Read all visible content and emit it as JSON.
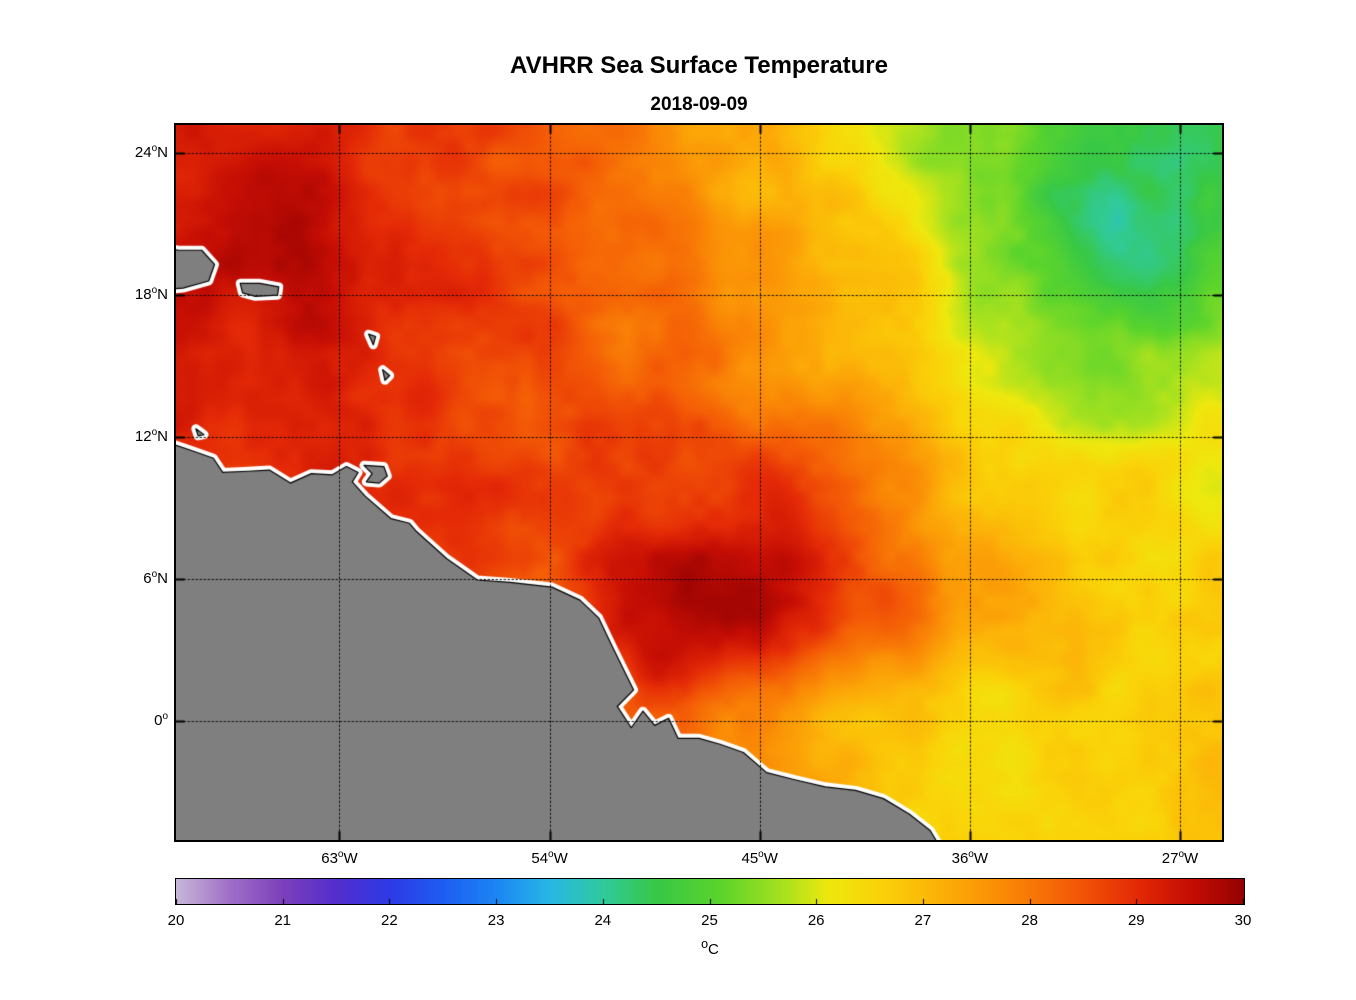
{
  "title": "AVHRR Sea Surface Temperature",
  "subtitle": "2018-09-09",
  "axes": {
    "lon_min": -70.0,
    "lon_max": -25.2,
    "lat_min": -5.05,
    "lat_max": 25.2,
    "deg_mark": "o",
    "grid_style": "dotted",
    "border_color": "#000000",
    "x_ticks": [
      {
        "lon": -63,
        "num": "63",
        "hemi": "W"
      },
      {
        "lon": -54,
        "num": "54",
        "hemi": "W"
      },
      {
        "lon": -45,
        "num": "45",
        "hemi": "W"
      },
      {
        "lon": -36,
        "num": "36",
        "hemi": "W"
      },
      {
        "lon": -27,
        "num": "27",
        "hemi": "W"
      }
    ],
    "y_ticks": [
      {
        "lat": 24,
        "num": "24",
        "hemi": "N"
      },
      {
        "lat": 18,
        "num": "18",
        "hemi": "N"
      },
      {
        "lat": 12,
        "num": "12",
        "hemi": "N"
      },
      {
        "lat": 6,
        "num": "6",
        "hemi": "N"
      },
      {
        "lat": 0,
        "num": "0",
        "hemi": ""
      }
    ]
  },
  "colorbar": {
    "min": 20,
    "max": 30,
    "tick_labels": [
      "20",
      "21",
      "22",
      "23",
      "24",
      "25",
      "26",
      "27",
      "28",
      "29",
      "30"
    ],
    "unit_deg": "o",
    "unit": "C"
  },
  "colormap": [
    [
      20.0,
      200,
      184,
      216
    ],
    [
      20.5,
      160,
      112,
      200
    ],
    [
      21.0,
      124,
      64,
      188
    ],
    [
      21.5,
      84,
      46,
      205
    ],
    [
      22.0,
      46,
      58,
      230
    ],
    [
      22.5,
      30,
      94,
      242
    ],
    [
      23.0,
      28,
      134,
      244
    ],
    [
      23.5,
      40,
      184,
      230
    ],
    [
      24.0,
      48,
      202,
      156
    ],
    [
      24.5,
      56,
      200,
      70
    ],
    [
      25.1,
      92,
      212,
      44
    ],
    [
      25.7,
      170,
      226,
      30
    ],
    [
      26.1,
      238,
      232,
      14
    ],
    [
      26.6,
      250,
      211,
      8
    ],
    [
      27.2,
      252,
      175,
      8
    ],
    [
      27.8,
      250,
      135,
      6
    ],
    [
      28.4,
      244,
      92,
      6
    ],
    [
      29.0,
      228,
      42,
      6
    ],
    [
      29.5,
      198,
      14,
      4
    ],
    [
      30.0,
      150,
      2,
      2
    ]
  ],
  "land": {
    "fill": "#7F7F7F",
    "halo": "#FFFFFF",
    "outline": "#000000",
    "mainland": [
      [
        -70.9,
        11.9
      ],
      [
        -70.0,
        11.65
      ],
      [
        -69.4,
        11.45
      ],
      [
        -68.4,
        11.1
      ],
      [
        -68.0,
        10.5
      ],
      [
        -66.9,
        10.55
      ],
      [
        -66.0,
        10.6
      ],
      [
        -65.1,
        10.05
      ],
      [
        -64.2,
        10.45
      ],
      [
        -63.3,
        10.4
      ],
      [
        -62.7,
        10.75
      ],
      [
        -62.2,
        10.5
      ],
      [
        -62.45,
        10.1
      ],
      [
        -61.9,
        9.5
      ],
      [
        -60.8,
        8.55
      ],
      [
        -60.0,
        8.35
      ],
      [
        -59.7,
        8.0
      ],
      [
        -58.4,
        6.85
      ],
      [
        -57.1,
        5.95
      ],
      [
        -55.7,
        5.85
      ],
      [
        -53.9,
        5.65
      ],
      [
        -52.7,
        5.1
      ],
      [
        -51.9,
        4.35
      ],
      [
        -51.3,
        3.1
      ],
      [
        -50.4,
        1.3
      ],
      [
        -51.1,
        0.6
      ],
      [
        -50.5,
        -0.3
      ],
      [
        -50.0,
        0.4
      ],
      [
        -49.5,
        -0.2
      ],
      [
        -48.9,
        0.1
      ],
      [
        -48.5,
        -0.75
      ],
      [
        -47.6,
        -0.75
      ],
      [
        -46.7,
        -1.0
      ],
      [
        -45.7,
        -1.35
      ],
      [
        -44.7,
        -2.2
      ],
      [
        -43.5,
        -2.5
      ],
      [
        -42.2,
        -2.8
      ],
      [
        -40.9,
        -2.95
      ],
      [
        -39.7,
        -3.3
      ],
      [
        -38.6,
        -3.95
      ],
      [
        -37.7,
        -4.65
      ],
      [
        -37.0,
        -5.8
      ],
      [
        -71.0,
        -5.8
      ]
    ],
    "islands": [
      [
        [
          -70.9,
          20.1
        ],
        [
          -69.9,
          19.9
        ],
        [
          -68.9,
          19.9
        ],
        [
          -68.35,
          19.3
        ],
        [
          -68.6,
          18.6
        ],
        [
          -69.7,
          18.3
        ],
        [
          -70.9,
          18.2
        ]
      ],
      [
        [
          -67.25,
          18.5
        ],
        [
          -66.4,
          18.5
        ],
        [
          -65.6,
          18.35
        ],
        [
          -65.65,
          18.0
        ],
        [
          -66.6,
          17.95
        ],
        [
          -67.15,
          18.1
        ]
      ],
      [
        [
          -69.15,
          12.35
        ],
        [
          -68.8,
          12.1
        ],
        [
          -69.05,
          12.05
        ]
      ],
      [
        [
          -61.75,
          16.35
        ],
        [
          -61.45,
          16.25
        ],
        [
          -61.55,
          15.9
        ]
      ],
      [
        [
          -61.15,
          14.85
        ],
        [
          -60.85,
          14.6
        ],
        [
          -61.05,
          14.4
        ]
      ],
      [
        [
          -61.95,
          10.8
        ],
        [
          -61.1,
          10.75
        ],
        [
          -60.95,
          10.35
        ],
        [
          -61.3,
          10.05
        ],
        [
          -61.85,
          10.1
        ],
        [
          -61.6,
          10.45
        ]
      ]
    ]
  },
  "chart_data": {
    "type": "heatmap",
    "title": "AVHRR Sea Surface Temperature",
    "subtitle": "2018-09-09",
    "units": "°C",
    "colorbar_range": [
      20,
      30
    ],
    "lon": [
      -70,
      -65,
      -60,
      -55,
      -50,
      -45,
      -40,
      -35,
      -30,
      -25
    ],
    "lat": [
      25,
      20,
      15,
      10,
      5,
      0,
      -5
    ],
    "sst_grid": [
      [
        29.3,
        29.1,
        28.8,
        28.4,
        28.0,
        27.2,
        26.2,
        25.3,
        24.7,
        24.6
      ],
      [
        29.4,
        29.2,
        28.9,
        28.5,
        28.2,
        27.4,
        26.9,
        25.1,
        24.5,
        24.8
      ],
      [
        29.2,
        29.0,
        28.8,
        28.5,
        28.1,
        27.6,
        27.2,
        26.0,
        25.4,
        25.7
      ],
      [
        28.8,
        28.9,
        28.7,
        28.6,
        28.7,
        28.8,
        27.8,
        26.8,
        26.6,
        26.3
      ],
      [
        28.2,
        28.2,
        28.4,
        28.7,
        29.3,
        29.4,
        28.4,
        27.3,
        26.9,
        26.7
      ],
      [
        27.8,
        27.8,
        27.9,
        28.1,
        28.4,
        27.7,
        27.0,
        26.7,
        26.8,
        26.9
      ],
      [
        27.5,
        27.5,
        27.5,
        27.5,
        27.6,
        27.2,
        26.9,
        26.8,
        26.7,
        26.8
      ]
    ],
    "features": [
      {
        "lon": -45.5,
        "lat": 7.0,
        "r": 4.0,
        "amp": 0.45
      },
      {
        "lon": -57.0,
        "lat": 15.0,
        "r": 6.0,
        "amp": 0.25
      },
      {
        "lon": -64.0,
        "lat": 19.0,
        "r": 5.0,
        "amp": 0.2
      },
      {
        "lon": -30.0,
        "lat": 21.0,
        "r": 2.5,
        "amp": -0.45
      },
      {
        "lon": -27.0,
        "lat": 18.0,
        "r": 2.2,
        "amp": -0.4
      },
      {
        "lon": -25.8,
        "lat": 22.5,
        "r": 2.2,
        "amp": -0.4
      },
      {
        "lon": -49.0,
        "lat": 2.5,
        "r": 2.0,
        "amp": 0.5
      },
      {
        "lon": -36.0,
        "lat": -1.5,
        "r": 3.0,
        "amp": -0.3
      }
    ]
  }
}
